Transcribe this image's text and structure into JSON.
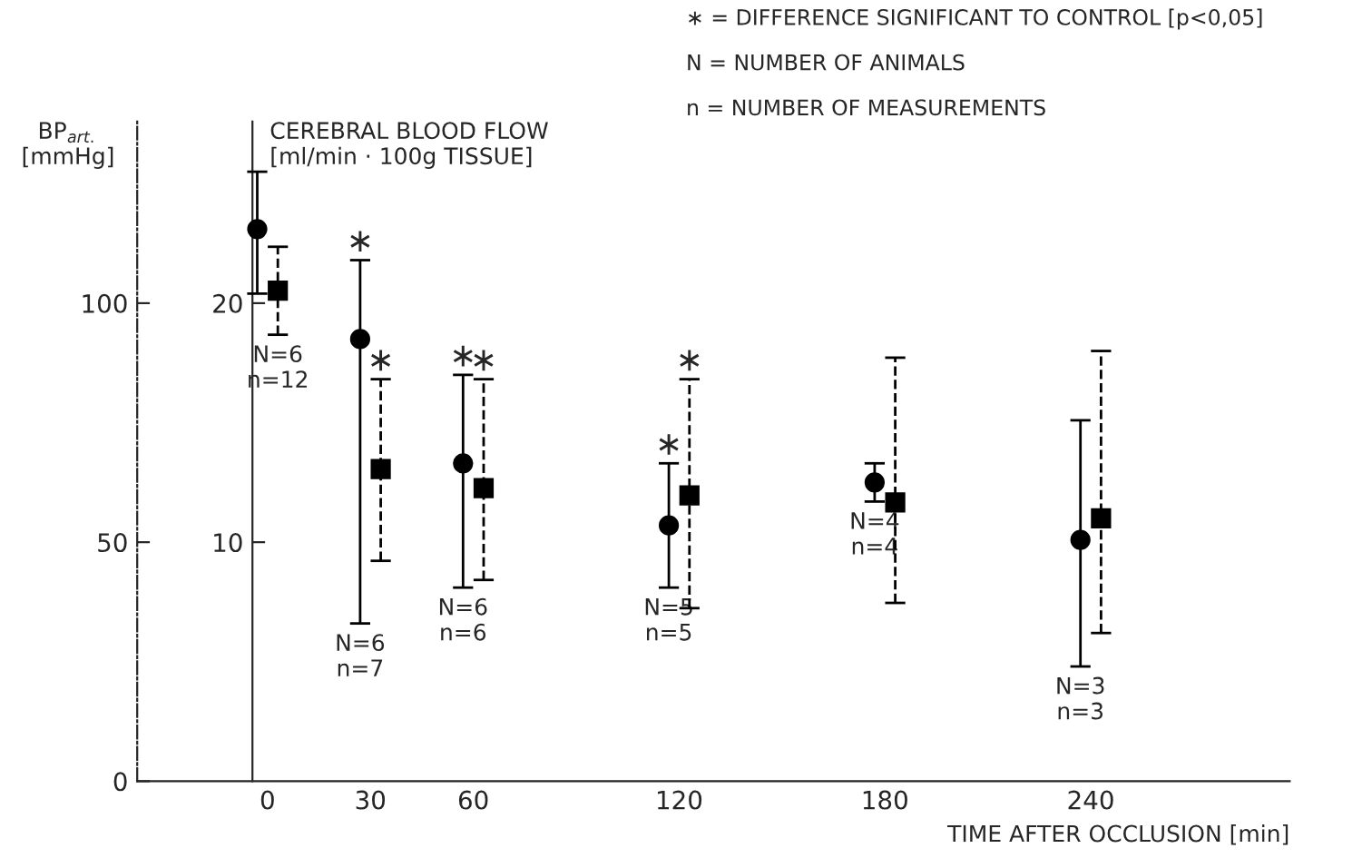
{
  "chart_data": {
    "type": "scatter",
    "xlabel": "TIME AFTER OCCLUSION [min]",
    "ylabel": "BP$_{art.}$\n[mmHg]",
    "y2label": "CEREBRAL BLOOD FLOW\n[ml/min · 100g TISSUE]",
    "xlim": [
      -38,
      298
    ],
    "xticks": [
      0,
      30,
      60,
      120,
      180,
      240
    ],
    "ylim": [
      0,
      138
    ],
    "yticks": [
      0,
      50,
      100
    ],
    "y2lim": [
      0,
      27.6
    ],
    "y2ticks": [
      10,
      20
    ],
    "grid": false,
    "series": [
      {
        "axis": "y2",
        "x": [
          -3,
          27,
          57,
          117,
          177,
          237
        ],
        "color": "#000000",
        "marker": "circle",
        "line_style": "solid",
        "values": [
          23.1,
          18.5,
          13.3,
          10.7,
          12.5,
          10.1
        ],
        "errors": [
          [
            20.4,
            25.5
          ],
          [
            6.6,
            21.8
          ],
          [
            8.1,
            17.0
          ],
          [
            8.1,
            13.3
          ],
          [
            11.7,
            13.3
          ],
          [
            4.8,
            15.1
          ]
        ]
      },
      {
        "axis": "y",
        "x": [
          3,
          33,
          63,
          123,
          183,
          243
        ],
        "color": "#000000",
        "marker": "square",
        "line_style": "dashed",
        "values": [
          102.6,
          65.3,
          61.3,
          59.8,
          58.3,
          55.0
        ],
        "errors": [
          [
            93.4,
            111.8
          ],
          [
            46.1,
            84.1
          ],
          [
            42.1,
            84.1
          ],
          [
            36.2,
            84.1
          ],
          [
            37.3,
            88.6
          ],
          [
            31.0,
            90.0
          ]
        ]
      }
    ],
    "annotations": [
      "∗ = DIFFERENCE SIGNIFICANT TO CONTROL [p<0,05]",
      "N = NUMBER OF ANIMALS",
      "n = NUMBER OF MEASUREMENTS",
      {
        "text": "∗",
        "x": 27,
        "y": 109
      },
      {
        "text": "∗",
        "x": 33,
        "y": 84.1
      },
      {
        "text": "∗",
        "x": 57,
        "y": 85
      },
      {
        "text": "∗",
        "x": 63,
        "y": 84.1
      },
      {
        "text": "∗",
        "x": 117,
        "y": 66.5
      },
      {
        "text": "∗",
        "x": 123,
        "y": 84.1
      },
      {
        "text": "N=6\nn=12",
        "x": 3,
        "y": 93.4
      },
      {
        "text": "N=6\nn=7",
        "x": 27,
        "y": 33
      },
      {
        "text": "N=6\nn=6",
        "x": 57,
        "y": 40.5
      },
      {
        "text": "N=5\nn=5",
        "x": 117,
        "y": 40.5
      },
      {
        "text": "N=4\nn=4",
        "x": 177,
        "y": 58.5
      },
      {
        "text": "N=3\nn=3",
        "x": 237,
        "y": 24
      }
    ]
  }
}
